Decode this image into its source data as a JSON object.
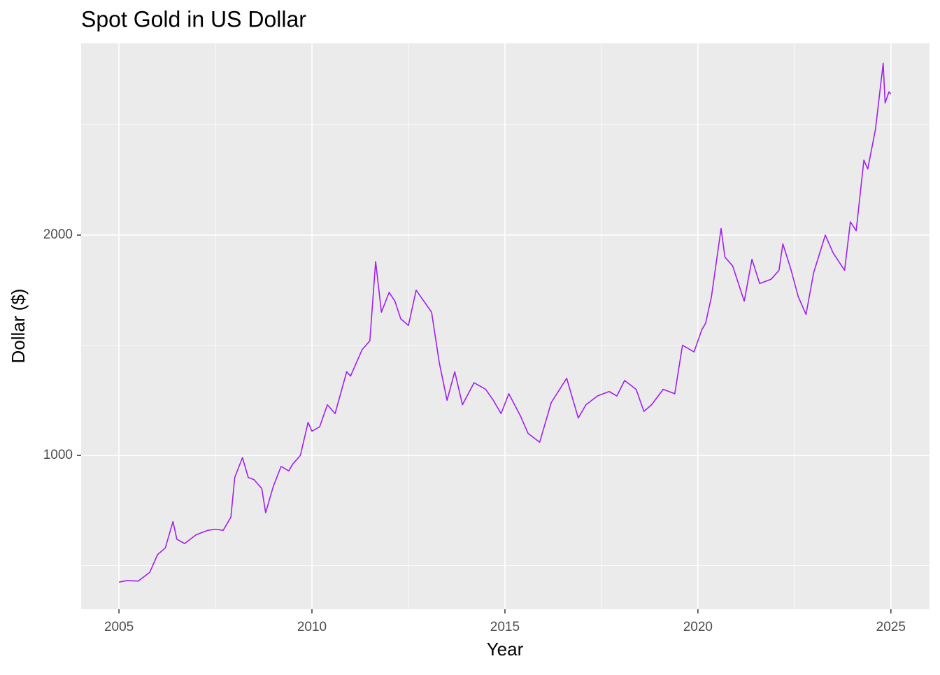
{
  "chart_data": {
    "type": "line",
    "title": "Spot Gold in US Dollar",
    "x_label": "Year",
    "y_label": "Dollar ($)",
    "x": [
      2005.0,
      2005.2,
      2005.5,
      2005.8,
      2006.0,
      2006.2,
      2006.4,
      2006.5,
      2006.7,
      2007.0,
      2007.3,
      2007.5,
      2007.7,
      2007.9,
      2008.0,
      2008.2,
      2008.35,
      2008.5,
      2008.7,
      2008.8,
      2008.9,
      2009.0,
      2009.2,
      2009.4,
      2009.5,
      2009.7,
      2009.9,
      2010.0,
      2010.2,
      2010.4,
      2010.6,
      2010.9,
      2011.0,
      2011.3,
      2011.5,
      2011.65,
      2011.8,
      2012.0,
      2012.15,
      2012.3,
      2012.5,
      2012.7,
      2012.9,
      2013.1,
      2013.3,
      2013.5,
      2013.7,
      2013.9,
      2014.2,
      2014.5,
      2014.7,
      2014.9,
      2015.1,
      2015.4,
      2015.6,
      2015.9,
      2016.2,
      2016.6,
      2016.9,
      2017.1,
      2017.4,
      2017.7,
      2017.9,
      2018.1,
      2018.4,
      2018.6,
      2018.8,
      2019.1,
      2019.4,
      2019.6,
      2019.9,
      2020.1,
      2020.2,
      2020.35,
      2020.6,
      2020.7,
      2020.9,
      2021.2,
      2021.4,
      2021.6,
      2021.9,
      2022.1,
      2022.2,
      2022.4,
      2022.6,
      2022.8,
      2023.0,
      2023.3,
      2023.5,
      2023.8,
      2023.95,
      2024.1,
      2024.3,
      2024.4,
      2024.6,
      2024.8,
      2024.85,
      2024.95,
      2025.0
    ],
    "series": [
      {
        "name": "Spot Gold",
        "color": "#A020F0",
        "values": [
          425,
          432,
          430,
          470,
          550,
          580,
          700,
          620,
          600,
          640,
          660,
          665,
          660,
          720,
          900,
          990,
          900,
          890,
          850,
          740,
          800,
          860,
          950,
          930,
          960,
          1000,
          1150,
          1110,
          1130,
          1230,
          1190,
          1380,
          1360,
          1480,
          1520,
          1880,
          1650,
          1740,
          1700,
          1620,
          1590,
          1750,
          1700,
          1650,
          1420,
          1250,
          1380,
          1230,
          1330,
          1300,
          1250,
          1190,
          1280,
          1180,
          1100,
          1060,
          1240,
          1350,
          1170,
          1230,
          1270,
          1290,
          1270,
          1340,
          1300,
          1200,
          1230,
          1300,
          1280,
          1500,
          1470,
          1570,
          1600,
          1720,
          2030,
          1900,
          1860,
          1700,
          1890,
          1780,
          1800,
          1840,
          1960,
          1850,
          1720,
          1640,
          1830,
          2000,
          1920,
          1840,
          2060,
          2020,
          2340,
          2300,
          2480,
          2780,
          2600,
          2650,
          2640
        ]
      }
    ],
    "xlim": [
      2004.02,
      2026.0
    ],
    "xticks": [
      2005,
      2010,
      2015,
      2020,
      2025
    ],
    "ylim": [
      302,
      2870
    ],
    "yticks": [
      1000,
      2000
    ],
    "x_minor_grid": [
      2007.5,
      2012.5,
      2017.5,
      2022.5
    ],
    "y_minor_grid": [
      500,
      1500,
      2500
    ],
    "grid": true
  }
}
